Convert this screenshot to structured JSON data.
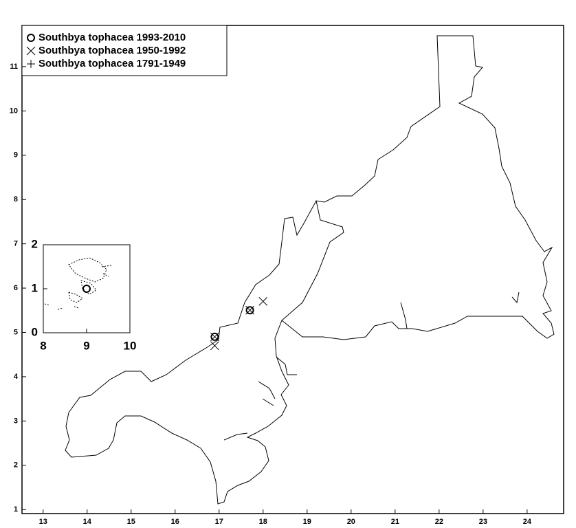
{
  "chart_data": [
    {
      "type": "scatter",
      "xlim": [
        12.52,
        24.83
      ],
      "ylim": [
        0.91,
        11.93
      ],
      "xticks": [
        13,
        14,
        15,
        16,
        17,
        18,
        19,
        20,
        21,
        22,
        23,
        24
      ],
      "yticks": [
        1,
        2,
        3,
        4,
        5,
        6,
        7,
        8,
        9,
        10,
        11
      ],
      "legend": "upper left",
      "series": [
        {
          "name": "Southbya tophacea 1993-2010",
          "marker": "circle",
          "color": "#000000",
          "x": [
            16.9,
            17.7
          ],
          "y": [
            4.9,
            5.5
          ]
        },
        {
          "name": "Southbya tophacea 1950-1992",
          "marker": "x",
          "color": "#000000",
          "x": [
            16.9,
            16.9,
            17.7,
            18.0
          ],
          "y": [
            4.7,
            4.9,
            5.5,
            5.7
          ]
        },
        {
          "name": "Southbya tophacea 1791-1949",
          "marker": "plus",
          "color": "#000000",
          "x": [],
          "y": []
        }
      ]
    },
    {
      "type": "scatter",
      "xlim": [
        8,
        10
      ],
      "ylim": [
        0,
        2
      ],
      "xticks": [
        8,
        9,
        10
      ],
      "yticks": [
        0,
        1,
        2
      ],
      "series": [
        {
          "marker": "circle",
          "color": "#000000",
          "x": [
            9.0
          ],
          "y": [
            1.0
          ]
        }
      ]
    }
  ]
}
